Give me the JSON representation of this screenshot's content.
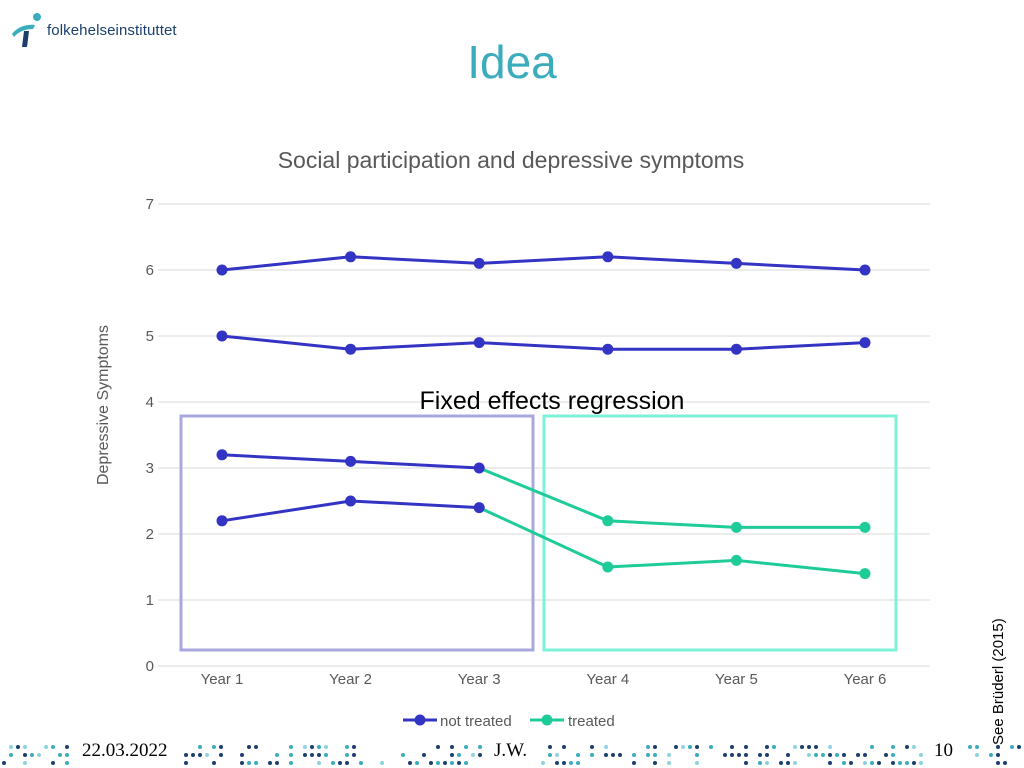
{
  "logo": {
    "text": "folkehelseinstituttet",
    "icon": "fhi-logo-icon",
    "color": "#1b3f6e"
  },
  "slide_title": "Idea",
  "annotation": "Fixed effects regression",
  "side_reference": "See Brüderl (2015)",
  "footer": {
    "date": "22.03.2022",
    "author": "J.W.",
    "page": "10"
  },
  "colors": {
    "not_treated": "#3333c4",
    "treated": "#1fcc99",
    "box_left": "#a8a8de",
    "box_right": "#7cf2d8",
    "title": "#3aacbc"
  },
  "chart_data": {
    "type": "line",
    "title": "Social participation and depressive symptoms",
    "xlabel": "",
    "ylabel": "Depressive Symptoms",
    "categories": [
      "Year 1",
      "Year 2",
      "Year 3",
      "Year 4",
      "Year 5",
      "Year 6"
    ],
    "ylim": [
      0,
      7
    ],
    "yticks": [
      0,
      1,
      2,
      3,
      4,
      5,
      6,
      7
    ],
    "grid": true,
    "legend": {
      "position": "bottom",
      "entries": [
        "not treated",
        "treated"
      ]
    },
    "lines": [
      {
        "values": [
          6.0,
          6.2,
          6.1,
          6.2,
          6.1,
          6.0
        ],
        "status": [
          "not treated",
          "not treated",
          "not treated",
          "not treated",
          "not treated",
          "not treated"
        ]
      },
      {
        "values": [
          5.0,
          4.8,
          4.9,
          4.8,
          4.8,
          4.9
        ],
        "status": [
          "not treated",
          "not treated",
          "not treated",
          "not treated",
          "not treated",
          "not treated"
        ]
      },
      {
        "values": [
          3.2,
          3.1,
          3.0,
          2.2,
          2.1,
          2.1
        ],
        "status": [
          "not treated",
          "not treated",
          "not treated",
          "treated",
          "treated",
          "treated"
        ]
      },
      {
        "values": [
          2.2,
          2.5,
          2.4,
          1.5,
          1.6,
          1.4
        ],
        "status": [
          "not treated",
          "not treated",
          "not treated",
          "treated",
          "treated",
          "treated"
        ]
      }
    ]
  }
}
